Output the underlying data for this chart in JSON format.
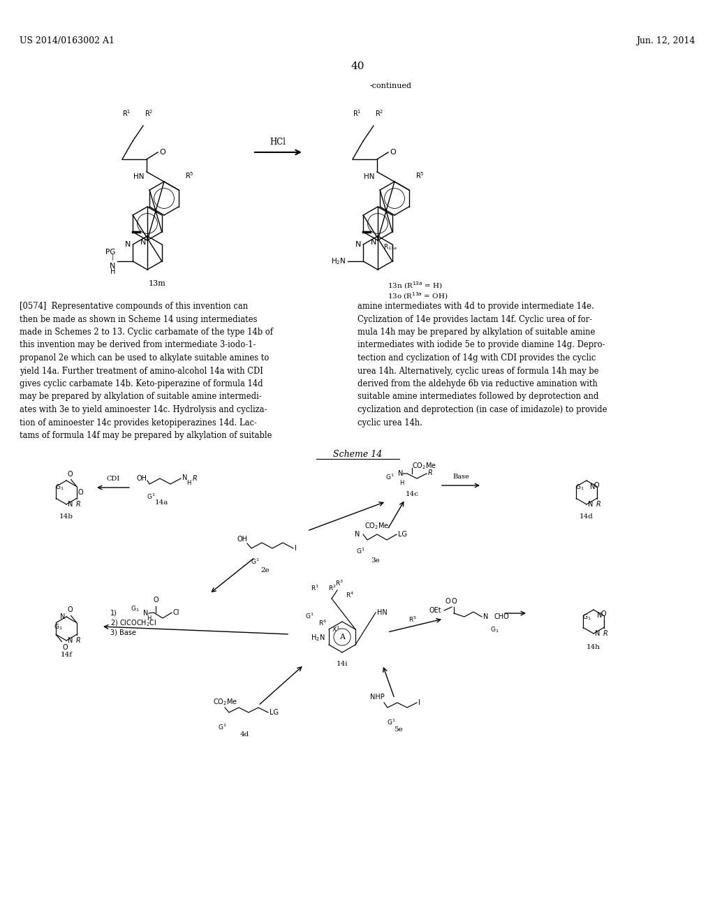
{
  "page_header_left": "US 2014/0163002 A1",
  "page_header_right": "Jun. 12, 2014",
  "page_number": "40",
  "continued_label": "-continued",
  "hcl_label": "HCl",
  "scheme_label": "Scheme 14",
  "paragraph_text_left": "[0574]  Representative compounds of this invention can\nthen be made as shown in Scheme 14 using intermediates\nmade in Schemes 2 to 13. Cyclic carbamate of the type 14b of\nthis invention may be derived from intermediate 3-iodo-1-\npropanol 2e which can be used to alkylate suitable amines to\nyield 14a. Further treatment of amino-alcohol 14a with CDI\ngives cyclic carbamate 14b. Keto-piperazine of formula 14d\nmay be prepared by alkylation of suitable amine intermedi-\nates with 3e to yield aminoester 14c. Hydrolysis and cycliza-\ntion of aminoester 14c provides ketopiperazines 14d. Lac-\ntams of formula 14f may be prepared by alkylation of suitable",
  "paragraph_text_right": "amine intermediates with 4d to provide intermediate 14e.\nCyclization of 14e provides lactam 14f. Cyclic urea of for-\nmula 14h may be prepared by alkylation of suitable amine\nintermediates with iodide 5e to provide diamine 14g. Depro-\ntection and cyclization of 14g with CDI provides the cyclic\nurea 14h. Alternatively, cyclic ureas of formula 14h may be\nderived from the aldehyde 6b via reductive amination with\nsuitable amine intermediates followed by deprotection and\ncyclization and deprotection (in case of imidazole) to provide\ncyclic urea 14h.",
  "bg_color": "#ffffff",
  "text_color": "#000000"
}
